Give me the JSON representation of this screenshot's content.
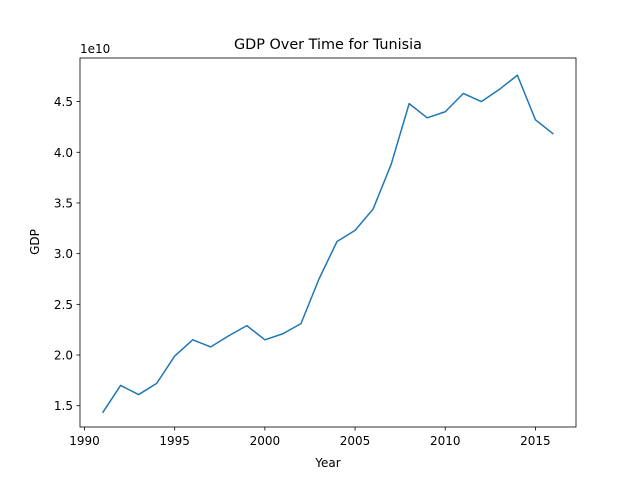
{
  "chart_data": {
    "type": "line",
    "title": "GDP Over Time for Tunisia",
    "xlabel": "Year",
    "ylabel": "GDP",
    "offset_label": "1e10",
    "xlim": [
      1989.75,
      2017.25
    ],
    "ylim": [
      1.29,
      4.93
    ],
    "xticks": [
      1990,
      1995,
      2000,
      2005,
      2010,
      2015
    ],
    "yticks": [
      1.5,
      2.0,
      2.5,
      3.0,
      3.5,
      4.0,
      4.5
    ],
    "ytick_labels": [
      "1.5",
      "2.0",
      "2.5",
      "3.0",
      "3.5",
      "4.0",
      "4.5"
    ],
    "grid": false,
    "line_color": "#1f77b4",
    "series": [
      {
        "x": [
          1991,
          1992,
          1993,
          1994,
          1995,
          1996,
          1997,
          1998,
          1999,
          2000,
          2001,
          2002,
          2003,
          2004,
          2005,
          2006,
          2007,
          2008,
          2009,
          2010,
          2011,
          2012,
          2013,
          2014,
          2015,
          2016
        ],
        "y": [
          1.43,
          1.7,
          1.61,
          1.72,
          1.99,
          2.15,
          2.08,
          2.19,
          2.29,
          2.15,
          2.21,
          2.31,
          2.75,
          3.12,
          3.23,
          3.44,
          3.88,
          4.48,
          4.34,
          4.4,
          4.58,
          4.5,
          4.62,
          4.76,
          4.32,
          4.18
        ]
      }
    ]
  }
}
